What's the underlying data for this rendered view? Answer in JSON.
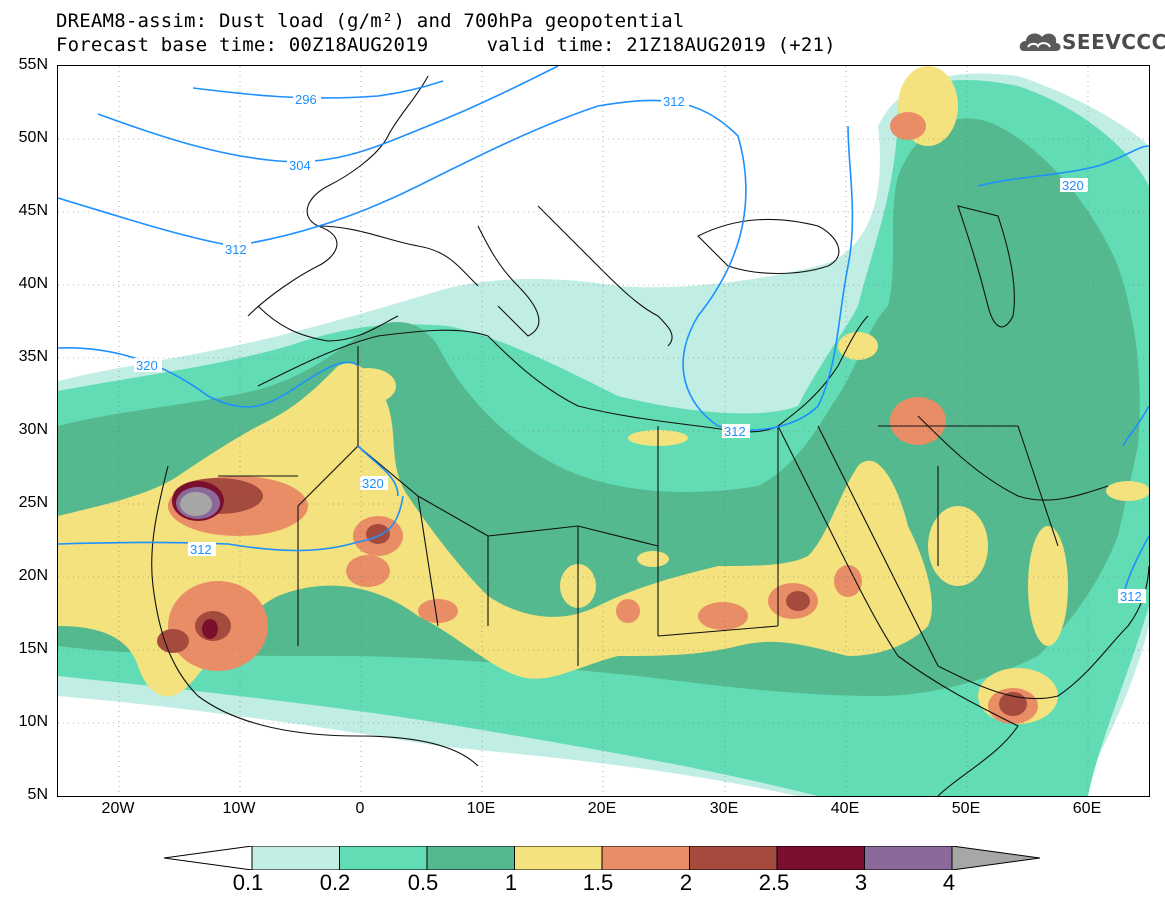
{
  "header": {
    "title_line1": "DREAM8-assim: Dust load (g/m²) and 700hPa geopotential",
    "title_line2": "Forecast base time: 00Z18AUG2019     valid time: 21Z18AUG2019 (+21)",
    "logo_text": "SEEVCCC"
  },
  "map": {
    "lon_range": [
      -25,
      65
    ],
    "lat_range": [
      5,
      55
    ],
    "lat_labels": [
      "55N",
      "50N",
      "45N",
      "40N",
      "35N",
      "30N",
      "25N",
      "20N",
      "15N",
      "10N",
      "5N"
    ],
    "lon_labels": [
      "20W",
      "10W",
      "0",
      "10E",
      "20E",
      "30E",
      "40E",
      "50E",
      "60E"
    ],
    "contour_labels": [
      "296",
      "304",
      "312",
      "320",
      "312",
      "320",
      "320",
      "312",
      "312",
      "312"
    ]
  },
  "legend": {
    "labels": [
      "0.1",
      "0.2",
      "0.5",
      "1",
      "1.5",
      "2",
      "2.5",
      "3",
      "4"
    ],
    "colors": [
      "#c0ede4",
      "#62dcb5",
      "#54b98e",
      "#f3e27d",
      "#e98d67",
      "#a44b3e",
      "#7b0f2e",
      "#8b6a9b",
      "#a7a7a7"
    ],
    "under_color": "#ffffff",
    "over_color": "#a7a7a7"
  },
  "styles": {
    "contour_color": "#1e90ff",
    "coast_color": "#111111"
  }
}
